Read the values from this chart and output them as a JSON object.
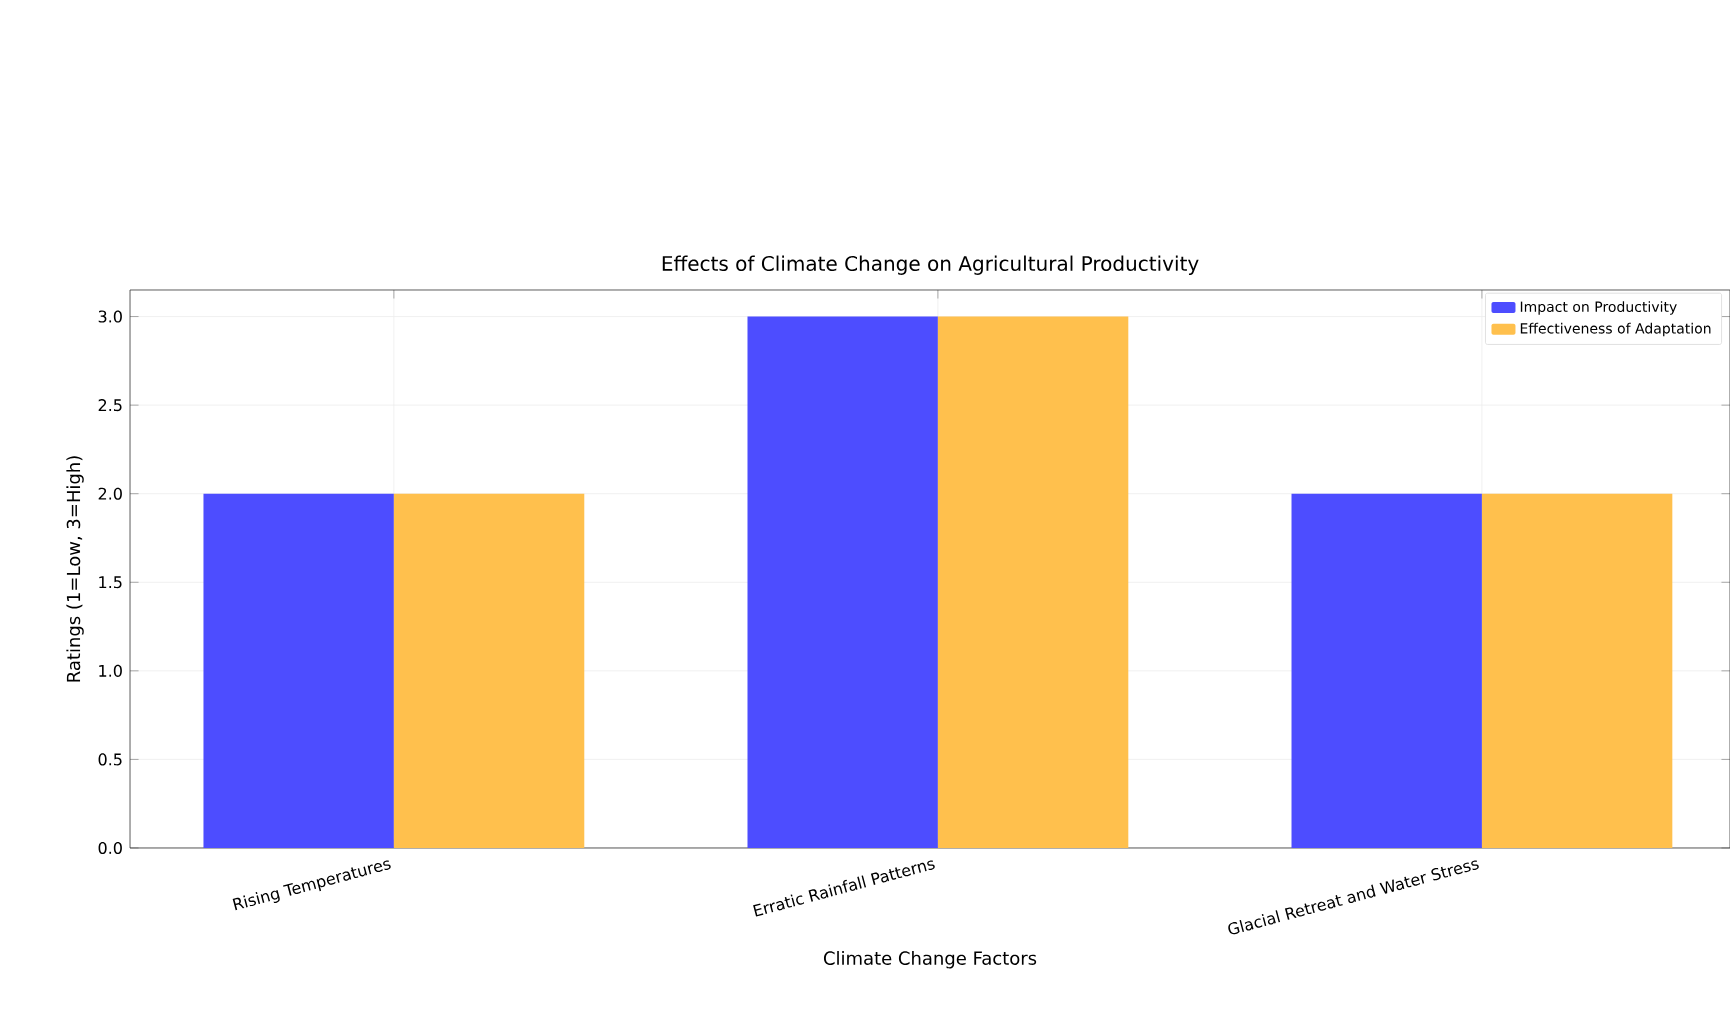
{
  "chart_data": {
    "type": "bar",
    "title": "Effects of Climate Change on Agricultural Productivity",
    "xlabel": "Climate Change Factors",
    "ylabel": "Ratings (1=Low, 3=High)",
    "categories": [
      "Rising Temperatures",
      "Erratic Rainfall Patterns",
      "Glacial Retreat and Water Stress"
    ],
    "series": [
      {
        "name": "Impact on Productivity",
        "color": "#4d4dff",
        "values": [
          2,
          3,
          2
        ]
      },
      {
        "name": "Effectiveness of Adaptation",
        "color": "#ffc04d",
        "values": [
          2,
          3,
          2
        ]
      }
    ],
    "ylim": [
      0,
      3.15
    ],
    "yticks": [
      {
        "value": 0,
        "label": "0.0"
      },
      {
        "value": 0.5,
        "label": "0.5"
      },
      {
        "value": 1,
        "label": "1.0"
      },
      {
        "value": 1.5,
        "label": "1.5"
      },
      {
        "value": 2,
        "label": "2.0"
      },
      {
        "value": 2.5,
        "label": "2.5"
      },
      {
        "value": 3,
        "label": "3.0"
      }
    ],
    "grid": true,
    "legend": "top right"
  }
}
